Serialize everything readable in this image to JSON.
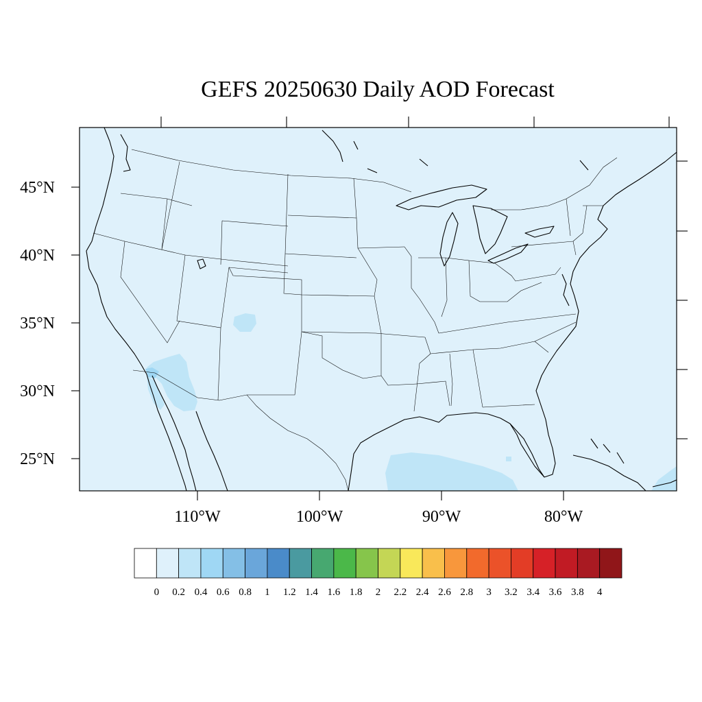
{
  "title": "GEFS 20250630 Daily AOD Forecast",
  "map": {
    "projection": "lambert-conformal",
    "region": "CONUS",
    "lat_labels": [
      "45°N",
      "40°N",
      "35°N",
      "30°N",
      "25°N"
    ],
    "lon_labels": [
      "110°W",
      "100°W",
      "90°W",
      "80°W"
    ],
    "background_color": "#dff1fb",
    "ocean_land_same_fill": true,
    "aod_patches": [
      {
        "region": "southern-arizona",
        "aod_range": [
          0.2,
          0.4
        ]
      },
      {
        "region": "baja-california-north",
        "aod_range": [
          0.2,
          0.4
        ]
      },
      {
        "region": "new-mexico-north",
        "aod_range": [
          0.2,
          0.4
        ]
      },
      {
        "region": "gulf-of-mexico-south",
        "aod_range": [
          0.2,
          0.4
        ]
      },
      {
        "region": "bahamas-east",
        "aod_range": [
          0.2,
          0.4
        ]
      }
    ]
  },
  "colorbar": {
    "labels": [
      "0",
      "0.2",
      "0.4",
      "0.6",
      "0.8",
      "1",
      "1.2",
      "1.4",
      "1.6",
      "1.8",
      "2",
      "2.2",
      "2.4",
      "2.6",
      "2.8",
      "3",
      "3.2",
      "3.4",
      "3.6",
      "3.8",
      "4"
    ],
    "colors": [
      "#ffffff",
      "#dff1fb",
      "#bfe5f7",
      "#9fd7f4",
      "#84bfe6",
      "#6aa6da",
      "#4a8bc9",
      "#4a9aa0",
      "#47a870",
      "#4bb849",
      "#86c54b",
      "#c4d655",
      "#f9e85a",
      "#f9bf4b",
      "#f8973c",
      "#f26a2c",
      "#eb5229",
      "#e33d26",
      "#d62127",
      "#c11b24",
      "#a91a22",
      "#901619"
    ]
  }
}
